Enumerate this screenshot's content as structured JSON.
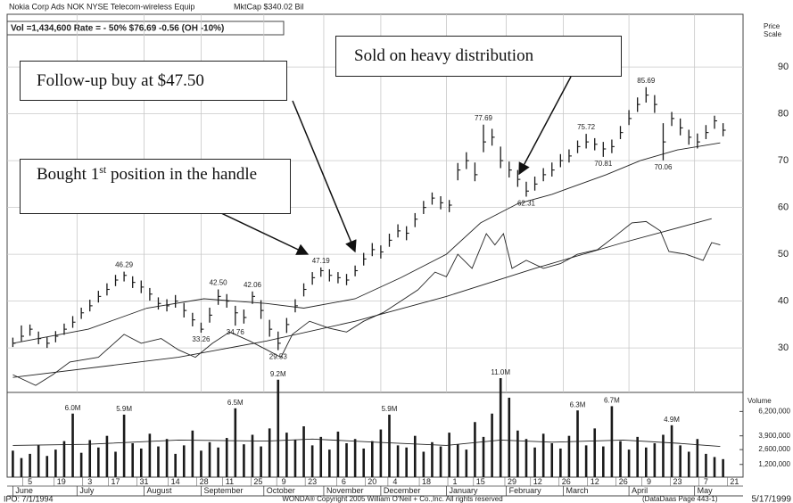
{
  "chart_data": {
    "type": "stock",
    "title": "Nokia Corp Ads  NOK  NYSE  Telecom-wireless Equip",
    "mktcap": "MktCap $340.02 Bil",
    "subtitle": "Vol =1,434,600  Rate = - 50%  $76.69  -0.56 (OH -10%)",
    "y_label_lines": [
      "Price",
      "Scale"
    ],
    "y2_label": "Volume",
    "grid": true,
    "bar_color": "#1a1a1a",
    "line_color": "#222222",
    "xlim": [
      -2,
      256
    ],
    "ylim": [
      20.5,
      100.5
    ],
    "yticks": [
      30,
      40,
      50,
      60,
      70,
      80,
      90
    ],
    "y2lim": [
      0,
      8000000
    ],
    "y2ticks": [
      {
        "value": 1200000,
        "label": "1,200,000"
      },
      {
        "value": 2600000,
        "label": "2,600,000"
      },
      {
        "value": 3900000,
        "label": "3,900,000"
      },
      {
        "value": 6200000,
        "label": "6,200,000"
      }
    ],
    "xticks": [
      {
        "value": 6,
        "label": "5"
      },
      {
        "value": 17,
        "label": "19"
      },
      {
        "value": 27,
        "label": "3"
      },
      {
        "value": 36,
        "label": "17"
      },
      {
        "value": 46,
        "label": "31"
      },
      {
        "value": 57,
        "label": "14"
      },
      {
        "value": 67,
        "label": "28"
      },
      {
        "value": 76,
        "label": "11"
      },
      {
        "value": 86,
        "label": "25"
      },
      {
        "value": 95,
        "label": "9"
      },
      {
        "value": 105,
        "label": "23"
      },
      {
        "value": 116,
        "label": "6"
      },
      {
        "value": 126,
        "label": "20"
      },
      {
        "value": 134,
        "label": "4"
      },
      {
        "value": 145,
        "label": "18"
      },
      {
        "value": 155,
        "label": "1"
      },
      {
        "value": 164,
        "label": "15"
      },
      {
        "value": 175,
        "label": "29"
      },
      {
        "value": 184,
        "label": "12"
      },
      {
        "value": 194,
        "label": "26"
      },
      {
        "value": 204,
        "label": "12"
      },
      {
        "value": 214,
        "label": "26"
      },
      {
        "value": 223,
        "label": "9"
      },
      {
        "value": 233,
        "label": "23"
      },
      {
        "value": 243,
        "label": "7"
      },
      {
        "value": 253,
        "label": "21"
      }
    ],
    "months": [
      {
        "value": 0,
        "label": "June"
      },
      {
        "value": 22.5,
        "label": "July"
      },
      {
        "value": 46,
        "label": "August"
      },
      {
        "value": 66,
        "label": "September"
      },
      {
        "value": 88,
        "label": "October"
      },
      {
        "value": 109,
        "label": "November"
      },
      {
        "value": 129,
        "label": "December"
      },
      {
        "value": 152,
        "label": "January"
      },
      {
        "value": 173,
        "label": "February"
      },
      {
        "value": 193,
        "label": "March"
      },
      {
        "value": 216,
        "label": "April"
      },
      {
        "value": 239,
        "label": "May"
      }
    ],
    "x": [
      0,
      3,
      6,
      9,
      12,
      15,
      18,
      21,
      24,
      27,
      30,
      33,
      36,
      39,
      42,
      45,
      48,
      51,
      54,
      57,
      60,
      63,
      66,
      69,
      72,
      75,
      78,
      81,
      84,
      87,
      90,
      93,
      96,
      99,
      102,
      105,
      108,
      111,
      114,
      117,
      120,
      123,
      126,
      129,
      132,
      135,
      138,
      141,
      144,
      147,
      150,
      153,
      156,
      159,
      162,
      165,
      168,
      171,
      174,
      177,
      180,
      183,
      186,
      189,
      192,
      195,
      198,
      201,
      204,
      207,
      210,
      213,
      216,
      219,
      222,
      225,
      228,
      231,
      234,
      237,
      240,
      243,
      246,
      249
    ],
    "high": [
      32.2,
      34.8,
      35,
      33.5,
      32.3,
      33.6,
      35.2,
      36.8,
      38.6,
      40.3,
      42.2,
      43.8,
      45.6,
      46.29,
      45.3,
      44.4,
      42.8,
      40.8,
      40.4,
      41.3,
      39.6,
      37.5,
      35.4,
      38.6,
      42.5,
      41.5,
      39,
      38.2,
      42.06,
      40.2,
      36,
      33.5,
      36.4,
      40.4,
      43.8,
      46.2,
      47.19,
      46.8,
      46.2,
      45.8,
      47.6,
      50.3,
      52.4,
      51.9,
      54.4,
      56.4,
      56,
      58.8,
      61.4,
      63.2,
      62.4,
      61.6,
      69.5,
      71.8,
      69.6,
      77.69,
      76.8,
      73,
      69.8,
      68,
      65.5,
      66.6,
      68.4,
      69.6,
      71.4,
      72.4,
      74.3,
      75.72,
      74.8,
      74,
      74.5,
      77.4,
      80.8,
      83.5,
      85.69,
      84,
      78,
      80.4,
      79,
      76.6,
      75.8,
      77.6,
      79.6,
      78
    ],
    "low": [
      30.2,
      31.4,
      32.6,
      30.8,
      30,
      31.2,
      32.8,
      34.3,
      36.2,
      37.8,
      39.7,
      41.2,
      43.2,
      44.2,
      42.8,
      41.7,
      40.1,
      38.2,
      37.8,
      38.6,
      36.5,
      34.6,
      33.26,
      35.4,
      39.2,
      38.6,
      34.76,
      35.2,
      39.4,
      36.2,
      32.4,
      29.53,
      33.2,
      37.6,
      41,
      43.5,
      45.2,
      44.2,
      43.8,
      43.4,
      45.3,
      47.6,
      49.6,
      49.1,
      51.6,
      53.6,
      53,
      55.8,
      58.6,
      60.6,
      59.6,
      59,
      65.8,
      68.2,
      65.6,
      71.8,
      73.2,
      68.4,
      66.4,
      64.4,
      62.31,
      63.6,
      65.6,
      66.6,
      68.6,
      69.6,
      71.6,
      72.6,
      72.2,
      70.81,
      71.6,
      74.6,
      77.6,
      80.4,
      82.4,
      80.2,
      70.06,
      77.4,
      75.4,
      73.4,
      72.6,
      74.6,
      76.8,
      75.2
    ],
    "close": [
      31,
      32.5,
      34,
      32,
      31,
      32.5,
      34,
      35.5,
      37.5,
      39,
      41,
      42.5,
      44.5,
      45.5,
      44,
      43,
      41.5,
      39.5,
      39,
      40,
      38,
      36,
      34,
      37,
      41,
      40,
      37.5,
      36.5,
      41,
      38,
      34,
      31,
      35,
      39,
      42.5,
      45,
      46.5,
      45.5,
      45,
      44.5,
      46.5,
      49,
      51,
      50.5,
      53,
      55,
      54.5,
      57.5,
      60,
      62,
      61,
      60.5,
      68,
      70,
      67,
      74,
      75,
      70,
      68,
      66,
      63.5,
      65,
      67,
      68,
      70,
      71,
      73,
      74,
      73.5,
      72.5,
      73,
      76,
      79,
      82,
      84,
      82,
      74,
      79,
      77,
      75,
      74,
      76,
      78.5,
      76.5
    ],
    "volume": [
      2500000,
      1800000,
      2200000,
      3000000,
      2000000,
      2600000,
      3400000,
      6000000,
      2300000,
      3500000,
      2800000,
      3900000,
      2400000,
      5900000,
      3200000,
      2700000,
      4100000,
      2900000,
      3600000,
      2200000,
      3000000,
      4400000,
      2500000,
      3300000,
      2800000,
      3700000,
      6500000,
      3100000,
      4000000,
      2900000,
      4600000,
      9200000,
      4200000,
      3500000,
      4800000,
      3000000,
      3800000,
      2600000,
      4300000,
      3200000,
      3600000,
      2700000,
      3400000,
      4500000,
      5900000,
      3000000,
      2800000,
      3900000,
      2400000,
      3300000,
      2900000,
      4200000,
      3100000,
      2600000,
      5200000,
      3800000,
      6000000,
      11000000,
      7500000,
      4400000,
      3600000,
      2800000,
      4100000,
      3200000,
      2700000,
      3900000,
      6300000,
      3000000,
      4600000,
      2900000,
      6700000,
      3400000,
      2600000,
      3800000,
      2800000,
      3200000,
      4000000,
      4900000,
      3000000,
      2400000,
      3600000,
      2200000,
      1900000,
      1700000
    ],
    "value_labels": [
      null,
      null,
      null,
      null,
      null,
      null,
      null,
      "6.0M",
      null,
      null,
      null,
      null,
      null,
      "5.9M",
      null,
      null,
      null,
      null,
      null,
      null,
      null,
      null,
      null,
      null,
      null,
      null,
      "6.5M",
      null,
      null,
      null,
      null,
      "9.2M",
      null,
      null,
      null,
      null,
      null,
      null,
      null,
      null,
      null,
      null,
      null,
      null,
      "5.9M",
      null,
      null,
      null,
      null,
      null,
      null,
      null,
      null,
      null,
      null,
      null,
      null,
      "11.0M",
      null,
      null,
      null,
      null,
      null,
      null,
      null,
      null,
      "6.3M",
      null,
      null,
      null,
      "6.7M",
      null,
      null,
      null,
      null,
      null,
      null,
      "4.9M",
      null,
      null,
      null,
      null,
      null,
      null
    ],
    "overlays": [
      {
        "x": [
          0,
          26.5,
          47,
          67,
          89,
          102,
          120,
          136,
          152,
          164,
          177,
          189,
          208,
          220,
          233,
          248
        ],
        "values": [
          31,
          34,
          38.5,
          40.5,
          39.5,
          38.5,
          40.5,
          45,
          50,
          56.7,
          60.8,
          62.8,
          67,
          70,
          72.3,
          73.8
        ]
      },
      {
        "x": [
          0,
          58,
          89,
          120,
          152,
          183,
          214,
          245
        ],
        "values": [
          23.7,
          28,
          31.5,
          35.7,
          41,
          47,
          52.5,
          57.6
        ]
      },
      {
        "x": [
          0,
          8,
          14,
          20,
          30,
          39,
          45,
          52,
          58,
          64,
          70,
          76,
          83,
          89,
          94,
          98,
          104,
          111,
          117,
          123,
          130,
          136,
          142,
          148,
          152,
          156,
          161,
          166,
          169,
          172,
          175,
          180,
          186,
          192,
          198,
          205,
          211,
          217,
          222,
          227,
          230,
          236,
          242,
          245,
          248
        ],
        "values": [
          24.3,
          22,
          24.3,
          27,
          28,
          32.9,
          31,
          32,
          29.6,
          28,
          31,
          33.4,
          31.5,
          29.6,
          28,
          32.9,
          35.7,
          34.2,
          33.4,
          35.7,
          37.6,
          40,
          42.4,
          46.2,
          45.2,
          50,
          47,
          54.4,
          52,
          54.4,
          47,
          48.7,
          47,
          48,
          50,
          51,
          53.8,
          56.7,
          57,
          55,
          50.6,
          50,
          48.7,
          52.5,
          52
        ]
      }
    ],
    "volume_average": {
      "x": [
        0,
        26,
        58,
        89,
        105,
        127,
        152,
        171,
        189,
        214,
        233,
        248
      ],
      "values": [
        3000000,
        3100000,
        3500000,
        3400000,
        3600000,
        3300000,
        3000000,
        3500000,
        3300000,
        3500000,
        3200000,
        2900000
      ]
    },
    "price_labels": [
      {
        "x": 39,
        "value": 46.29,
        "label": "46.29"
      },
      {
        "x": 66,
        "value": 33.26,
        "label": "33.26"
      },
      {
        "x": 72,
        "value": 42.5,
        "label": "42.50"
      },
      {
        "x": 78,
        "value": 34.76,
        "label": "34.76"
      },
      {
        "x": 84,
        "value": 42.06,
        "label": "42.06"
      },
      {
        "x": 93,
        "value": 29.53,
        "label": "29.53"
      },
      {
        "x": 108,
        "value": 47.19,
        "label": "47.19"
      },
      {
        "x": 165,
        "value": 77.69,
        "label": "77.69"
      },
      {
        "x": 180,
        "value": 62.31,
        "label": "62.31"
      },
      {
        "x": 201,
        "value": 75.72,
        "label": "75.72"
      },
      {
        "x": 207,
        "value": 70.81,
        "label": "70.81"
      },
      {
        "x": 222,
        "value": 85.69,
        "label": "85.69"
      },
      {
        "x": 228,
        "value": 70.06,
        "label": "70.06"
      }
    ],
    "callouts": {
      "follow_up": "Follow-up buy at $47.50",
      "sold": "Sold on heavy distribution",
      "bought": {
        "text": "Bought 1",
        "superscript": "st",
        "rest": " position in the handle"
      }
    },
    "footer": {
      "ipo": "IPO: 7/1/1994",
      "copyright": "WONDA® Copyright 2005 William O'Neil + Co.,Inc. All rights reserved",
      "page": "(DataDaas Page 443-1)",
      "date": "5/17/1999"
    }
  }
}
